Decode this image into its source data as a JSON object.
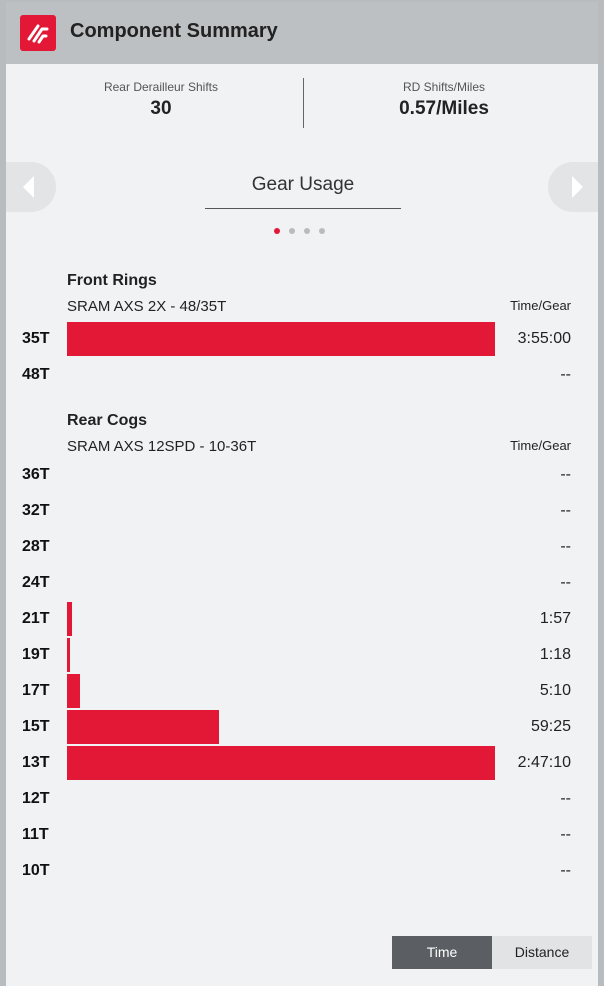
{
  "header": {
    "title": "Component Summary",
    "logo_icon": "brand-logo-icon",
    "accent": "#e31836"
  },
  "stats": [
    {
      "label": "Rear Derailleur Shifts",
      "value": "30"
    },
    {
      "label": "RD Shifts/Miles",
      "value": "0.57/Miles"
    }
  ],
  "carousel": {
    "title": "Gear Usage",
    "pages": 4,
    "active_page": 1,
    "prev_icon": "chevron-left-icon",
    "next_icon": "chevron-right-icon"
  },
  "front": {
    "title": "Front Rings",
    "subtitle": "SRAM AXS 2X - 48/35T",
    "column_header": "Time/Gear",
    "rows": [
      {
        "gear": "35T",
        "value": "3:55:00",
        "fraction": 1.0
      },
      {
        "gear": "48T",
        "value": "--",
        "fraction": 0
      }
    ]
  },
  "rear": {
    "title": "Rear Cogs",
    "subtitle": "SRAM AXS 12SPD - 10-36T",
    "column_header": "Time/Gear",
    "rows": [
      {
        "gear": "36T",
        "value": "--",
        "fraction": 0
      },
      {
        "gear": "32T",
        "value": "--",
        "fraction": 0
      },
      {
        "gear": "28T",
        "value": "--",
        "fraction": 0
      },
      {
        "gear": "24T",
        "value": "--",
        "fraction": 0
      },
      {
        "gear": "21T",
        "value": "1:57",
        "fraction": 0.0117
      },
      {
        "gear": "19T",
        "value": "1:18",
        "fraction": 0.0078
      },
      {
        "gear": "17T",
        "value": "5:10",
        "fraction": 0.031
      },
      {
        "gear": "15T",
        "value": "59:25",
        "fraction": 0.356
      },
      {
        "gear": "13T",
        "value": "2:47:10",
        "fraction": 1.0
      },
      {
        "gear": "12T",
        "value": "--",
        "fraction": 0
      },
      {
        "gear": "11T",
        "value": "--",
        "fraction": 0
      },
      {
        "gear": "10T",
        "value": "--",
        "fraction": 0
      }
    ]
  },
  "toggle": {
    "options": [
      "Time",
      "Distance"
    ],
    "selected": "Time"
  }
}
